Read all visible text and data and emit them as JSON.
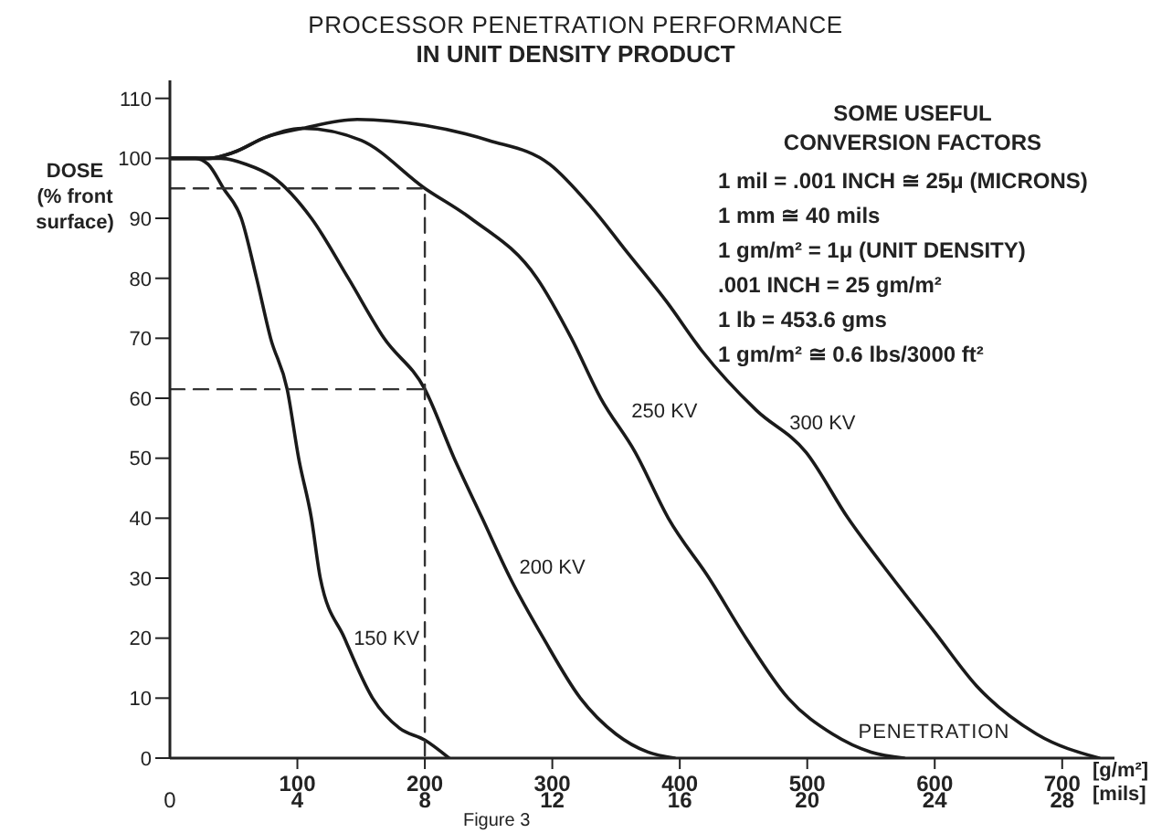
{
  "chart_data": {
    "type": "line",
    "title": "PROCESSOR PENETRATION PERFORMANCE",
    "subtitle": "IN UNIT DENSITY PRODUCT",
    "xlabel": "PENETRATION",
    "ylabel": "DOSE\n(% front\nsurface)",
    "annotations": [
      "SOME USEFUL\nCONVERSION FACTORS",
      "1 mil = .001 INCH ≅ 25μ (MICRONS)",
      "1 mm ≅ 40 mils",
      "1 gm/m² = 1μ (UNIT DENSITY)",
      ".001 INCH = 25 gm/m²",
      "1 lb = 453.6 gms",
      "1 gm/m² ≅ 0.6 lbs/3000 ft²",
      "[g/m²]",
      "Figure 3"
    ],
    "series": [
      {
        "name": "150 KV",
        "color": "#1a1a1a",
        "x": [
          0,
          20,
          30,
          42,
          56,
          68,
          79,
          92,
          101,
          111,
          118,
          137,
          159,
          180,
          200,
          219
        ],
        "values": [
          100,
          100,
          99,
          95,
          90,
          80,
          70,
          61.5,
          50,
          40,
          30,
          20,
          10,
          5,
          3,
          0
        ]
      },
      {
        "name": "200 KV",
        "color": "#1a1a1a",
        "x": [
          0,
          40,
          60,
          80,
          111,
          140,
          168,
          200,
          223,
          245,
          267,
          293,
          322,
          350,
          375,
          396
        ],
        "values": [
          100,
          100,
          99,
          97,
          90,
          80,
          70,
          61.5,
          50,
          40,
          30,
          20,
          10,
          4,
          1,
          0
        ]
      },
      {
        "name": "250 KV",
        "color": "#1a1a1a",
        "x": [
          0,
          30,
          50,
          75,
          104,
          150,
          200,
          236,
          288,
          315,
          338,
          365,
          391,
          423,
          452,
          485,
          520,
          550,
          576
        ],
        "values": [
          100,
          100,
          101,
          103.5,
          105,
          103,
          95,
          90,
          80,
          70,
          60,
          51,
          40,
          30,
          20,
          10,
          4,
          1,
          0
        ]
      },
      {
        "name": "300 KV",
        "color": "#1a1a1a",
        "x": [
          0,
          30,
          50,
          75,
          104,
          147,
          200,
          250,
          298,
          330,
          360,
          390,
          417,
          460,
          499,
          532,
          567,
          600,
          633,
          680,
          729
        ],
        "values": [
          100,
          100,
          101,
          103.5,
          105,
          106.5,
          105.5,
          103,
          99,
          92,
          84,
          76,
          68,
          58,
          51,
          40,
          30,
          21,
          12,
          4,
          0
        ]
      },
      {
        "type": "line",
        "line_style": "dashed",
        "color": "#333333",
        "x": [
          0,
          200,
          200
        ],
        "values": [
          95,
          95,
          0
        ]
      },
      {
        "type": "line",
        "line_style": "dashed",
        "color": "#333333",
        "x": [
          0,
          200
        ],
        "values": [
          61.5,
          61.5
        ]
      }
    ],
    "xlim": [
      0,
      741
    ],
    "ylim": [
      0,
      113
    ],
    "xticks": [
      100,
      200,
      300,
      400,
      500,
      600,
      700
    ],
    "x2lim": [
      0,
      29.64
    ],
    "x2ticks": [
      0,
      4,
      8,
      12,
      16,
      20,
      24,
      28
    ],
    "x2label": "[mils]",
    "yticks": [
      0,
      10,
      20,
      30,
      40,
      50,
      60,
      70,
      80,
      90,
      100,
      110
    ],
    "grid": false,
    "legend": false,
    "marker": "none",
    "line_style": "solid"
  }
}
